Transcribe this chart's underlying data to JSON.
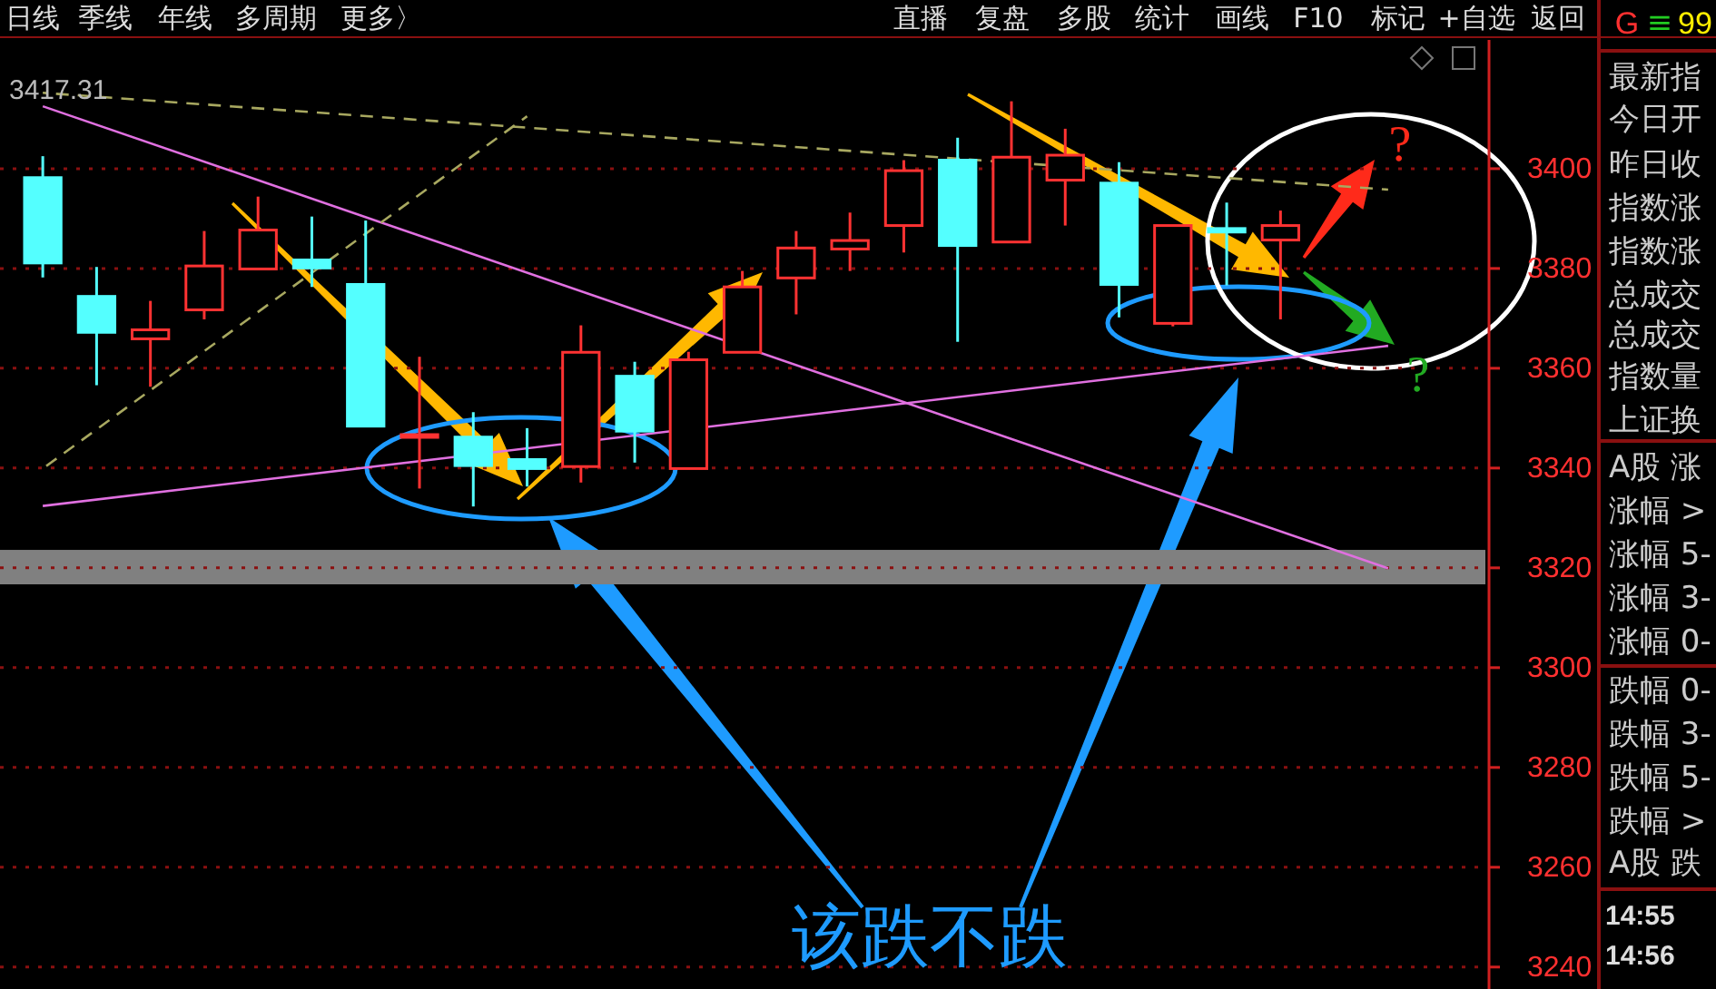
{
  "chart_data": {
    "type": "candlestick",
    "categories": [
      null,
      null,
      null,
      null,
      null,
      null,
      null,
      null,
      null,
      null,
      null,
      null,
      null,
      null,
      null,
      null,
      null,
      null,
      null,
      null,
      null,
      null,
      null,
      null,
      null,
      null
    ],
    "ohlc": [
      [
        3398.2,
        3402.5,
        3378.2,
        3381.1
      ],
      [
        3374.4,
        3380.3,
        3356.6,
        3367.2
      ],
      [
        3365.9,
        3373.5,
        3356.3,
        3367.7
      ],
      [
        3371.7,
        3387.5,
        3369.8,
        3380.5
      ],
      [
        3379.9,
        3394.4,
        3379.9,
        3387.7
      ],
      [
        3381.7,
        3390.4,
        3376.3,
        3380.1
      ],
      [
        3376.8,
        3389.6,
        3348.4,
        3348.4
      ],
      [
        3346.3,
        3362.3,
        3335.9,
        3346.7
      ],
      [
        3346.2,
        3351.2,
        3332.3,
        3340.5
      ],
      [
        3341.7,
        3348.0,
        3336.3,
        3339.9
      ],
      [
        3340.3,
        3368.6,
        3337.1,
        3363.2
      ],
      [
        3358.4,
        3361.3,
        3341.1,
        3347.4
      ],
      [
        3339.9,
        3363.3,
        3339.9,
        3361.7
      ],
      [
        3363.2,
        3379.5,
        3363.2,
        3376.3
      ],
      [
        3378.1,
        3387.5,
        3370.8,
        3384.1
      ],
      [
        3383.9,
        3391.2,
        3379.5,
        3385.6
      ],
      [
        3388.6,
        3401.7,
        3383.2,
        3399.6
      ],
      [
        3401.7,
        3406.2,
        3365.3,
        3384.6
      ],
      [
        3385.3,
        3413.5,
        3385.3,
        3402.3
      ],
      [
        3397.7,
        3408.0,
        3388.6,
        3402.7
      ],
      [
        3397.1,
        3401.3,
        3370.2,
        3376.8
      ],
      [
        3369.0,
        3388.6,
        3368.4,
        3388.6
      ],
      [
        3388.0,
        3393.2,
        3376.6,
        3387.3
      ],
      [
        3385.7,
        3391.6,
        3369.8,
        3388.6
      ],
      null,
      null
    ],
    "colors": [
      "#54ffff",
      "#54ffff",
      "#ff3232",
      "#ff3232",
      "#ff3232",
      "#54ffff",
      "#54ffff",
      "#ff3232",
      "#54ffff",
      "#54ffff",
      "#ff3232",
      "#54ffff",
      "#ff3232",
      "#ff3232",
      "#ff3232",
      "#ff3232",
      "#ff3232",
      "#54ffff",
      "#ff3232",
      "#ff3232",
      "#54ffff",
      "#ff3232",
      "#54ffff",
      "#ff3232",
      null,
      null
    ],
    "series": [
      {
        "type": "line",
        "color": "#e070e0",
        "line_style": "solid",
        "values": [
          3412.5,
          null,
          null,
          null,
          null,
          null,
          null,
          null,
          null,
          null,
          null,
          null,
          null,
          null,
          null,
          null,
          null,
          null,
          null,
          null,
          null,
          null,
          null,
          null,
          null,
          3319.9
        ]
      },
      {
        "type": "line",
        "color": "#e070e0",
        "line_style": "solid",
        "values": [
          3332.4,
          null,
          null,
          null,
          null,
          null,
          null,
          null,
          null,
          null,
          null,
          null,
          null,
          null,
          null,
          null,
          null,
          null,
          null,
          null,
          null,
          null,
          null,
          null,
          null,
          3364.5
        ]
      },
      {
        "type": "line",
        "color": "#a8a860",
        "line_style": "dashed",
        "values": [
          3415.2,
          null,
          null,
          null,
          null,
          null,
          null,
          null,
          null,
          null,
          null,
          null,
          null,
          null,
          null,
          null,
          null,
          null,
          null,
          null,
          null,
          null,
          null,
          null,
          null,
          3395.8
        ]
      },
      {
        "type": "line",
        "color": "#a8a860",
        "line_style": "dashed",
        "values": [
          3339.9,
          null,
          null,
          null,
          null,
          null,
          null,
          null,
          null,
          3410.5,
          null,
          null,
          null,
          null,
          null,
          null,
          null,
          null,
          null,
          null,
          null,
          null,
          null,
          null,
          null,
          null
        ]
      }
    ],
    "bands": [
      {
        "axis": "y",
        "from": 3316.7,
        "to": 3323.6,
        "color": "#808080"
      }
    ],
    "ylim": [
      3235.6,
      3425.8
    ],
    "yticks": [
      3240,
      3260,
      3280,
      3300,
      3320,
      3340,
      3360,
      3380,
      3400
    ],
    "grid": "y",
    "tick_labels": "y",
    "annotations": [
      "日线",
      "季线",
      "年线",
      "多周期",
      "更多〉",
      "直播",
      "复盘",
      "多股",
      "统计",
      "画线",
      "F10",
      "标记",
      "+自选",
      "返回",
      "G",
      "≡",
      "99",
      "最新指",
      "今日开",
      "昨日收",
      "指数涨",
      "指数涨",
      "总成交",
      "总成交",
      "指数量",
      "上证换",
      "A股 涨",
      "涨幅 >",
      "涨幅 5-",
      "涨幅 3-",
      "涨幅 0-",
      "跌幅 0-",
      "跌幅 3-",
      "跌幅 5-",
      "跌幅 >",
      "A股 跌",
      "14:55",
      "14:56",
      "该跌不跌",
      "3417.31",
      "?",
      "?"
    ]
  }
}
